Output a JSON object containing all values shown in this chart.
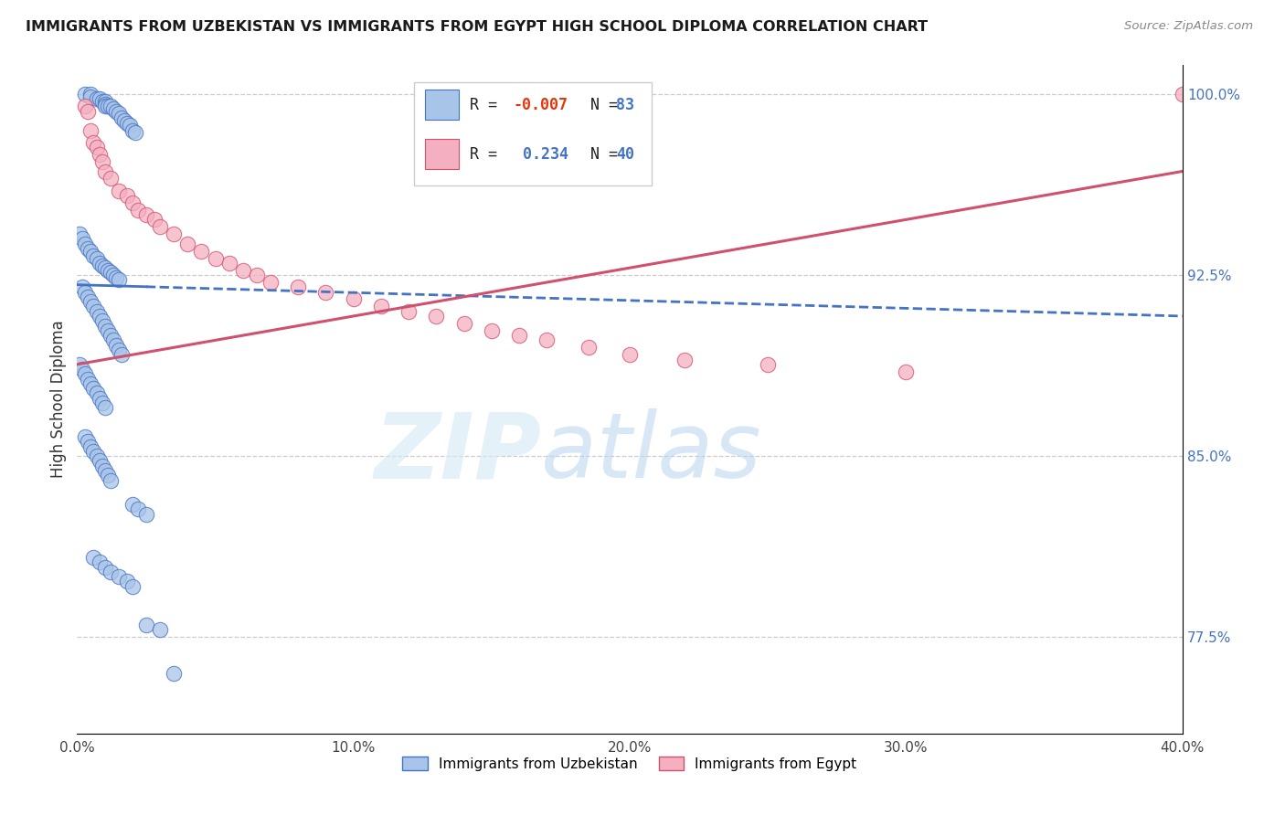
{
  "title": "IMMIGRANTS FROM UZBEKISTAN VS IMMIGRANTS FROM EGYPT HIGH SCHOOL DIPLOMA CORRELATION CHART",
  "source": "Source: ZipAtlas.com",
  "xlabel_ticks": [
    "0.0%",
    "10.0%",
    "20.0%",
    "30.0%",
    "40.0%"
  ],
  "xlabel_tick_vals": [
    0.0,
    0.1,
    0.2,
    0.3,
    0.4
  ],
  "ylabel": "High School Diploma",
  "ylabel_ticks": [
    "77.5%",
    "85.0%",
    "92.5%",
    "100.0%"
  ],
  "ylabel_tick_vals": [
    0.775,
    0.85,
    0.925,
    1.0
  ],
  "xlim": [
    0.0,
    0.4
  ],
  "ylim": [
    0.735,
    1.012
  ],
  "blue_color": "#a8c4e8",
  "pink_color": "#f4afc0",
  "blue_line_color": "#4472c4",
  "pink_line_color": "#d0506e",
  "R_blue": -0.007,
  "N_blue": 83,
  "R_pink": 0.234,
  "N_pink": 40,
  "legend_label_blue": "Immigrants from Uzbekistan",
  "legend_label_pink": "Immigrants from Egypt",
  "watermark_zip": "ZIP",
  "watermark_atlas": "atlas",
  "blue_scatter_x": [
    0.003,
    0.005,
    0.005,
    0.007,
    0.008,
    0.009,
    0.01,
    0.01,
    0.01,
    0.011,
    0.012,
    0.013,
    0.014,
    0.015,
    0.016,
    0.017,
    0.018,
    0.019,
    0.02,
    0.021,
    0.001,
    0.002,
    0.003,
    0.004,
    0.005,
    0.006,
    0.007,
    0.008,
    0.009,
    0.01,
    0.011,
    0.012,
    0.013,
    0.014,
    0.015,
    0.002,
    0.003,
    0.004,
    0.005,
    0.006,
    0.007,
    0.008,
    0.009,
    0.01,
    0.011,
    0.012,
    0.013,
    0.014,
    0.015,
    0.016,
    0.001,
    0.002,
    0.003,
    0.004,
    0.005,
    0.006,
    0.007,
    0.008,
    0.009,
    0.01,
    0.003,
    0.004,
    0.005,
    0.006,
    0.007,
    0.008,
    0.009,
    0.01,
    0.011,
    0.012,
    0.02,
    0.022,
    0.025,
    0.006,
    0.008,
    0.01,
    0.012,
    0.015,
    0.018,
    0.02,
    0.025,
    0.03,
    0.035
  ],
  "blue_scatter_y": [
    1.0,
    1.0,
    0.999,
    0.998,
    0.998,
    0.997,
    0.997,
    0.996,
    0.995,
    0.995,
    0.995,
    0.994,
    0.993,
    0.992,
    0.99,
    0.989,
    0.988,
    0.987,
    0.985,
    0.984,
    0.942,
    0.94,
    0.938,
    0.936,
    0.935,
    0.933,
    0.932,
    0.93,
    0.929,
    0.928,
    0.927,
    0.926,
    0.925,
    0.924,
    0.923,
    0.92,
    0.918,
    0.916,
    0.914,
    0.912,
    0.91,
    0.908,
    0.906,
    0.904,
    0.902,
    0.9,
    0.898,
    0.896,
    0.894,
    0.892,
    0.888,
    0.886,
    0.884,
    0.882,
    0.88,
    0.878,
    0.876,
    0.874,
    0.872,
    0.87,
    0.858,
    0.856,
    0.854,
    0.852,
    0.85,
    0.848,
    0.846,
    0.844,
    0.842,
    0.84,
    0.83,
    0.828,
    0.826,
    0.808,
    0.806,
    0.804,
    0.802,
    0.8,
    0.798,
    0.796,
    0.78,
    0.778,
    0.76
  ],
  "pink_scatter_x": [
    0.003,
    0.004,
    0.005,
    0.006,
    0.007,
    0.008,
    0.009,
    0.01,
    0.012,
    0.015,
    0.018,
    0.02,
    0.022,
    0.025,
    0.028,
    0.03,
    0.035,
    0.04,
    0.045,
    0.05,
    0.055,
    0.06,
    0.065,
    0.07,
    0.08,
    0.09,
    0.1,
    0.11,
    0.12,
    0.13,
    0.14,
    0.15,
    0.16,
    0.17,
    0.185,
    0.2,
    0.22,
    0.25,
    0.3,
    0.4
  ],
  "pink_scatter_y": [
    0.995,
    0.993,
    0.985,
    0.98,
    0.978,
    0.975,
    0.972,
    0.968,
    0.965,
    0.96,
    0.958,
    0.955,
    0.952,
    0.95,
    0.948,
    0.945,
    0.942,
    0.938,
    0.935,
    0.932,
    0.93,
    0.927,
    0.925,
    0.922,
    0.92,
    0.918,
    0.915,
    0.912,
    0.91,
    0.908,
    0.905,
    0.902,
    0.9,
    0.898,
    0.895,
    0.892,
    0.89,
    0.888,
    0.885,
    1.0
  ]
}
